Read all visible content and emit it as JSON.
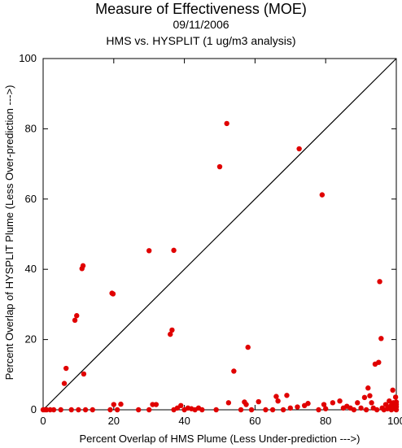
{
  "chart_data": {
    "type": "scatter",
    "title": "Measure of Effectiveness (MOE)",
    "subtitle": "09/11/2006",
    "subtitle2": "HMS vs. HYSPLIT  (1 ug/m3 analysis)",
    "xlabel": "Percent Overlap of HMS Plume (Less Under-prediction --->)",
    "ylabel": "Percent Overlap of HYSPLIT Plume (Less Over-prediction --->)",
    "xlim": [
      0,
      100
    ],
    "ylim": [
      0,
      100
    ],
    "xticks": [
      0,
      20,
      40,
      60,
      80,
      100
    ],
    "yticks": [
      0,
      20,
      40,
      60,
      80,
      100
    ],
    "grid": false,
    "reference_line": {
      "from": [
        0,
        0
      ],
      "to": [
        100,
        100
      ],
      "color": "#000000"
    },
    "marker_color": "#e00000",
    "points": [
      [
        0,
        0
      ],
      [
        0.5,
        0
      ],
      [
        1,
        0
      ],
      [
        2,
        0
      ],
      [
        3,
        0
      ],
      [
        5,
        0
      ],
      [
        6,
        7.5
      ],
      [
        6.5,
        11.8
      ],
      [
        8,
        0
      ],
      [
        9,
        25.5
      ],
      [
        9.5,
        26.8
      ],
      [
        10,
        0
      ],
      [
        11,
        40.2
      ],
      [
        11.3,
        41
      ],
      [
        11.5,
        10.2
      ],
      [
        12,
        0
      ],
      [
        14,
        0
      ],
      [
        19,
        0
      ],
      [
        19.5,
        33.2
      ],
      [
        19.8,
        33
      ],
      [
        20,
        1.5
      ],
      [
        21,
        0
      ],
      [
        22,
        1.6
      ],
      [
        27,
        0
      ],
      [
        30,
        45.3
      ],
      [
        30,
        0
      ],
      [
        31,
        1.5
      ],
      [
        32,
        1.5
      ],
      [
        36,
        21.5
      ],
      [
        36.5,
        22.7
      ],
      [
        37,
        45.4
      ],
      [
        37,
        0
      ],
      [
        38,
        0.5
      ],
      [
        39,
        1.2
      ],
      [
        40,
        0
      ],
      [
        41,
        0.5
      ],
      [
        42,
        0.3
      ],
      [
        43,
        0
      ],
      [
        44,
        0.5
      ],
      [
        45,
        0
      ],
      [
        49,
        0
      ],
      [
        50,
        69.2
      ],
      [
        52,
        81.5
      ],
      [
        52.5,
        2
      ],
      [
        54,
        11
      ],
      [
        56,
        0
      ],
      [
        57,
        2.2
      ],
      [
        57.5,
        1.5
      ],
      [
        58,
        17.8
      ],
      [
        59,
        0
      ],
      [
        61,
        2.3
      ],
      [
        63,
        0
      ],
      [
        65,
        0
      ],
      [
        66,
        3.8
      ],
      [
        66.5,
        2.5
      ],
      [
        68,
        0
      ],
      [
        69,
        4.1
      ],
      [
        70,
        0.5
      ],
      [
        72,
        0.8
      ],
      [
        72.5,
        74.3
      ],
      [
        74,
        1.2
      ],
      [
        75,
        1.8
      ],
      [
        78,
        0
      ],
      [
        79,
        61.2
      ],
      [
        79.5,
        1.5
      ],
      [
        80,
        0.3
      ],
      [
        82,
        2
      ],
      [
        84,
        2.5
      ],
      [
        85,
        0.5
      ],
      [
        86,
        1
      ],
      [
        87,
        0.5
      ],
      [
        88,
        0
      ],
      [
        89,
        2
      ],
      [
        90,
        0.5
      ],
      [
        91,
        3.5
      ],
      [
        91.5,
        0
      ],
      [
        92,
        6.2
      ],
      [
        92.5,
        4
      ],
      [
        93,
        2
      ],
      [
        93.5,
        0.5
      ],
      [
        94,
        13
      ],
      [
        94.5,
        0
      ],
      [
        95,
        13.5
      ],
      [
        95.3,
        36.5
      ],
      [
        95.7,
        20.3
      ],
      [
        96,
        0.5
      ],
      [
        96.5,
        0
      ],
      [
        97,
        1.5
      ],
      [
        97.5,
        0.3
      ],
      [
        98,
        2.5
      ],
      [
        98.3,
        1
      ],
      [
        98.6,
        0
      ],
      [
        99,
        5.6
      ],
      [
        99.2,
        2
      ],
      [
        99.4,
        1.2
      ],
      [
        99.6,
        0.3
      ],
      [
        99.8,
        3.6
      ],
      [
        100,
        0.8
      ],
      [
        100,
        0
      ],
      [
        100,
        2.2
      ],
      [
        99,
        0.5
      ],
      [
        98.8,
        1.8
      ],
      [
        100,
        1.5
      ]
    ]
  }
}
